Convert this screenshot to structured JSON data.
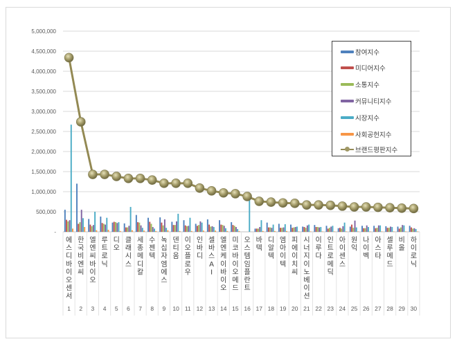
{
  "chart_data": {
    "type": "bar",
    "title": "",
    "xlabel": "",
    "ylabel": "",
    "ylim": [
      0,
      5000000
    ],
    "yticks": [
      "-",
      "500,000",
      "1,000,000",
      "1,500,000",
      "2,000,000",
      "2,500,000",
      "3,000,000",
      "3,500,000",
      "4,000,000",
      "4,500,000",
      "5,000,000"
    ],
    "grid": true,
    "legend_position": "upper-right-inside",
    "categories": [
      "에스디바이오센서",
      "한국비엔씨",
      "엘엔씨바이오",
      "루트로닉",
      "디오",
      "클래시스",
      "세종메디칼",
      "수젠텍",
      "녹십자엠에스",
      "덴티움",
      "이오플로우",
      "인바디",
      "셀바스AI",
      "엘엔케이바이오",
      "미코바이오메드",
      "오스템임플란트",
      "바텍",
      "디알텍",
      "엠아이텍",
      "피에이치씨",
      "시너지이노베이션",
      "이루다",
      "인트로메딕",
      "아이센스",
      "원익",
      "나이벡",
      "아스타",
      "셀루메드",
      "비올",
      "하이로닉"
    ],
    "ranks": [
      1,
      2,
      3,
      4,
      5,
      6,
      7,
      8,
      9,
      10,
      11,
      12,
      13,
      14,
      15,
      16,
      17,
      18,
      19,
      20,
      21,
      22,
      23,
      24,
      25,
      26,
      27,
      28,
      29,
      30
    ],
    "series": [
      {
        "name": "참여지수",
        "kind": "bar",
        "color": "#4f81bd",
        "values": [
          550000,
          1200000,
          320000,
          380000,
          230000,
          210000,
          420000,
          350000,
          360000,
          250000,
          290000,
          200000,
          310000,
          290000,
          240000,
          0,
          80000,
          230000,
          200000,
          180000,
          130000,
          170000,
          150000,
          90000,
          130000,
          150000,
          150000,
          140000,
          130000,
          150000
        ]
      },
      {
        "name": "미디어지수",
        "kind": "bar",
        "color": "#c0504d",
        "values": [
          300000,
          200000,
          180000,
          220000,
          250000,
          110000,
          240000,
          250000,
          230000,
          170000,
          160000,
          150000,
          180000,
          180000,
          170000,
          0,
          80000,
          110000,
          100000,
          100000,
          120000,
          120000,
          80000,
          100000,
          180000,
          90000,
          90000,
          100000,
          80000,
          110000
        ]
      },
      {
        "name": "소통지수",
        "kind": "bar",
        "color": "#9bbb59",
        "values": [
          260000,
          240000,
          140000,
          200000,
          240000,
          110000,
          230000,
          200000,
          160000,
          170000,
          140000,
          170000,
          130000,
          170000,
          150000,
          0,
          80000,
          110000,
          100000,
          110000,
          100000,
          120000,
          100000,
          80000,
          100000,
          90000,
          100000,
          100000,
          110000,
          80000
        ]
      },
      {
        "name": "커뮤니티지수",
        "kind": "bar",
        "color": "#8064a2",
        "values": [
          290000,
          550000,
          170000,
          180000,
          220000,
          150000,
          160000,
          120000,
          310000,
          260000,
          150000,
          260000,
          140000,
          150000,
          120000,
          0,
          120000,
          100000,
          110000,
          120000,
          160000,
          110000,
          130000,
          140000,
          280000,
          160000,
          160000,
          130000,
          170000,
          90000
        ]
      },
      {
        "name": "시장지수",
        "kind": "bar",
        "color": "#4bacc6",
        "values": [
          2670000,
          340000,
          500000,
          350000,
          240000,
          620000,
          100000,
          80000,
          100000,
          450000,
          350000,
          230000,
          120000,
          90000,
          70000,
          880000,
          290000,
          180000,
          190000,
          130000,
          180000,
          120000,
          150000,
          230000,
          110000,
          120000,
          160000,
          120000,
          160000,
          70000
        ]
      },
      {
        "name": "사회공헌지수",
        "kind": "bar",
        "color": "#f79646",
        "values": [
          80000,
          120000,
          40000,
          50000,
          20000,
          40000,
          30000,
          20000,
          40000,
          20000,
          20000,
          30000,
          30000,
          20000,
          20000,
          0,
          20000,
          20000,
          20000,
          10000,
          10000,
          10000,
          10000,
          10000,
          10000,
          10000,
          10000,
          10000,
          10000,
          10000
        ]
      },
      {
        "name": "브랜드평판지수",
        "kind": "line",
        "color": "#938953",
        "values": [
          4340000,
          2740000,
          1430000,
          1430000,
          1380000,
          1330000,
          1330000,
          1290000,
          1210000,
          1210000,
          1210000,
          1090000,
          1020000,
          970000,
          950000,
          880000,
          760000,
          740000,
          720000,
          710000,
          670000,
          670000,
          660000,
          640000,
          620000,
          620000,
          610000,
          600000,
          590000,
          580000
        ]
      }
    ]
  },
  "legend": {
    "items": [
      {
        "label": "참여지수",
        "color": "#4f81bd",
        "kind": "bar"
      },
      {
        "label": "미디어지수",
        "color": "#c0504d",
        "kind": "bar"
      },
      {
        "label": "소통지수",
        "color": "#9bbb59",
        "kind": "bar"
      },
      {
        "label": "커뮤니티지수",
        "color": "#8064a2",
        "kind": "bar"
      },
      {
        "label": "시장지수",
        "color": "#4bacc6",
        "kind": "bar"
      },
      {
        "label": "사회공헌지수",
        "color": "#f79646",
        "kind": "bar"
      },
      {
        "label": "브랜드평판지수",
        "color": "#938953",
        "kind": "line"
      }
    ]
  }
}
